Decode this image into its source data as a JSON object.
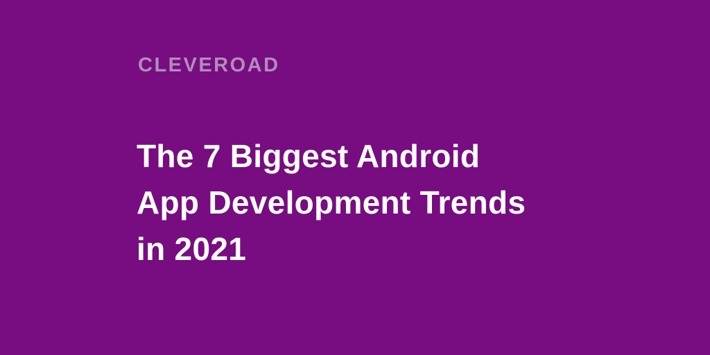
{
  "page": {
    "background_color": "#770D81"
  },
  "brand": {
    "logo_text": "CLEVEROAD",
    "logo_color": "#B28CBA"
  },
  "title": {
    "lines": [
      "The 7 Biggest Android",
      "App Development Trends",
      "in 2021"
    ],
    "color": "#FFFFFF"
  }
}
